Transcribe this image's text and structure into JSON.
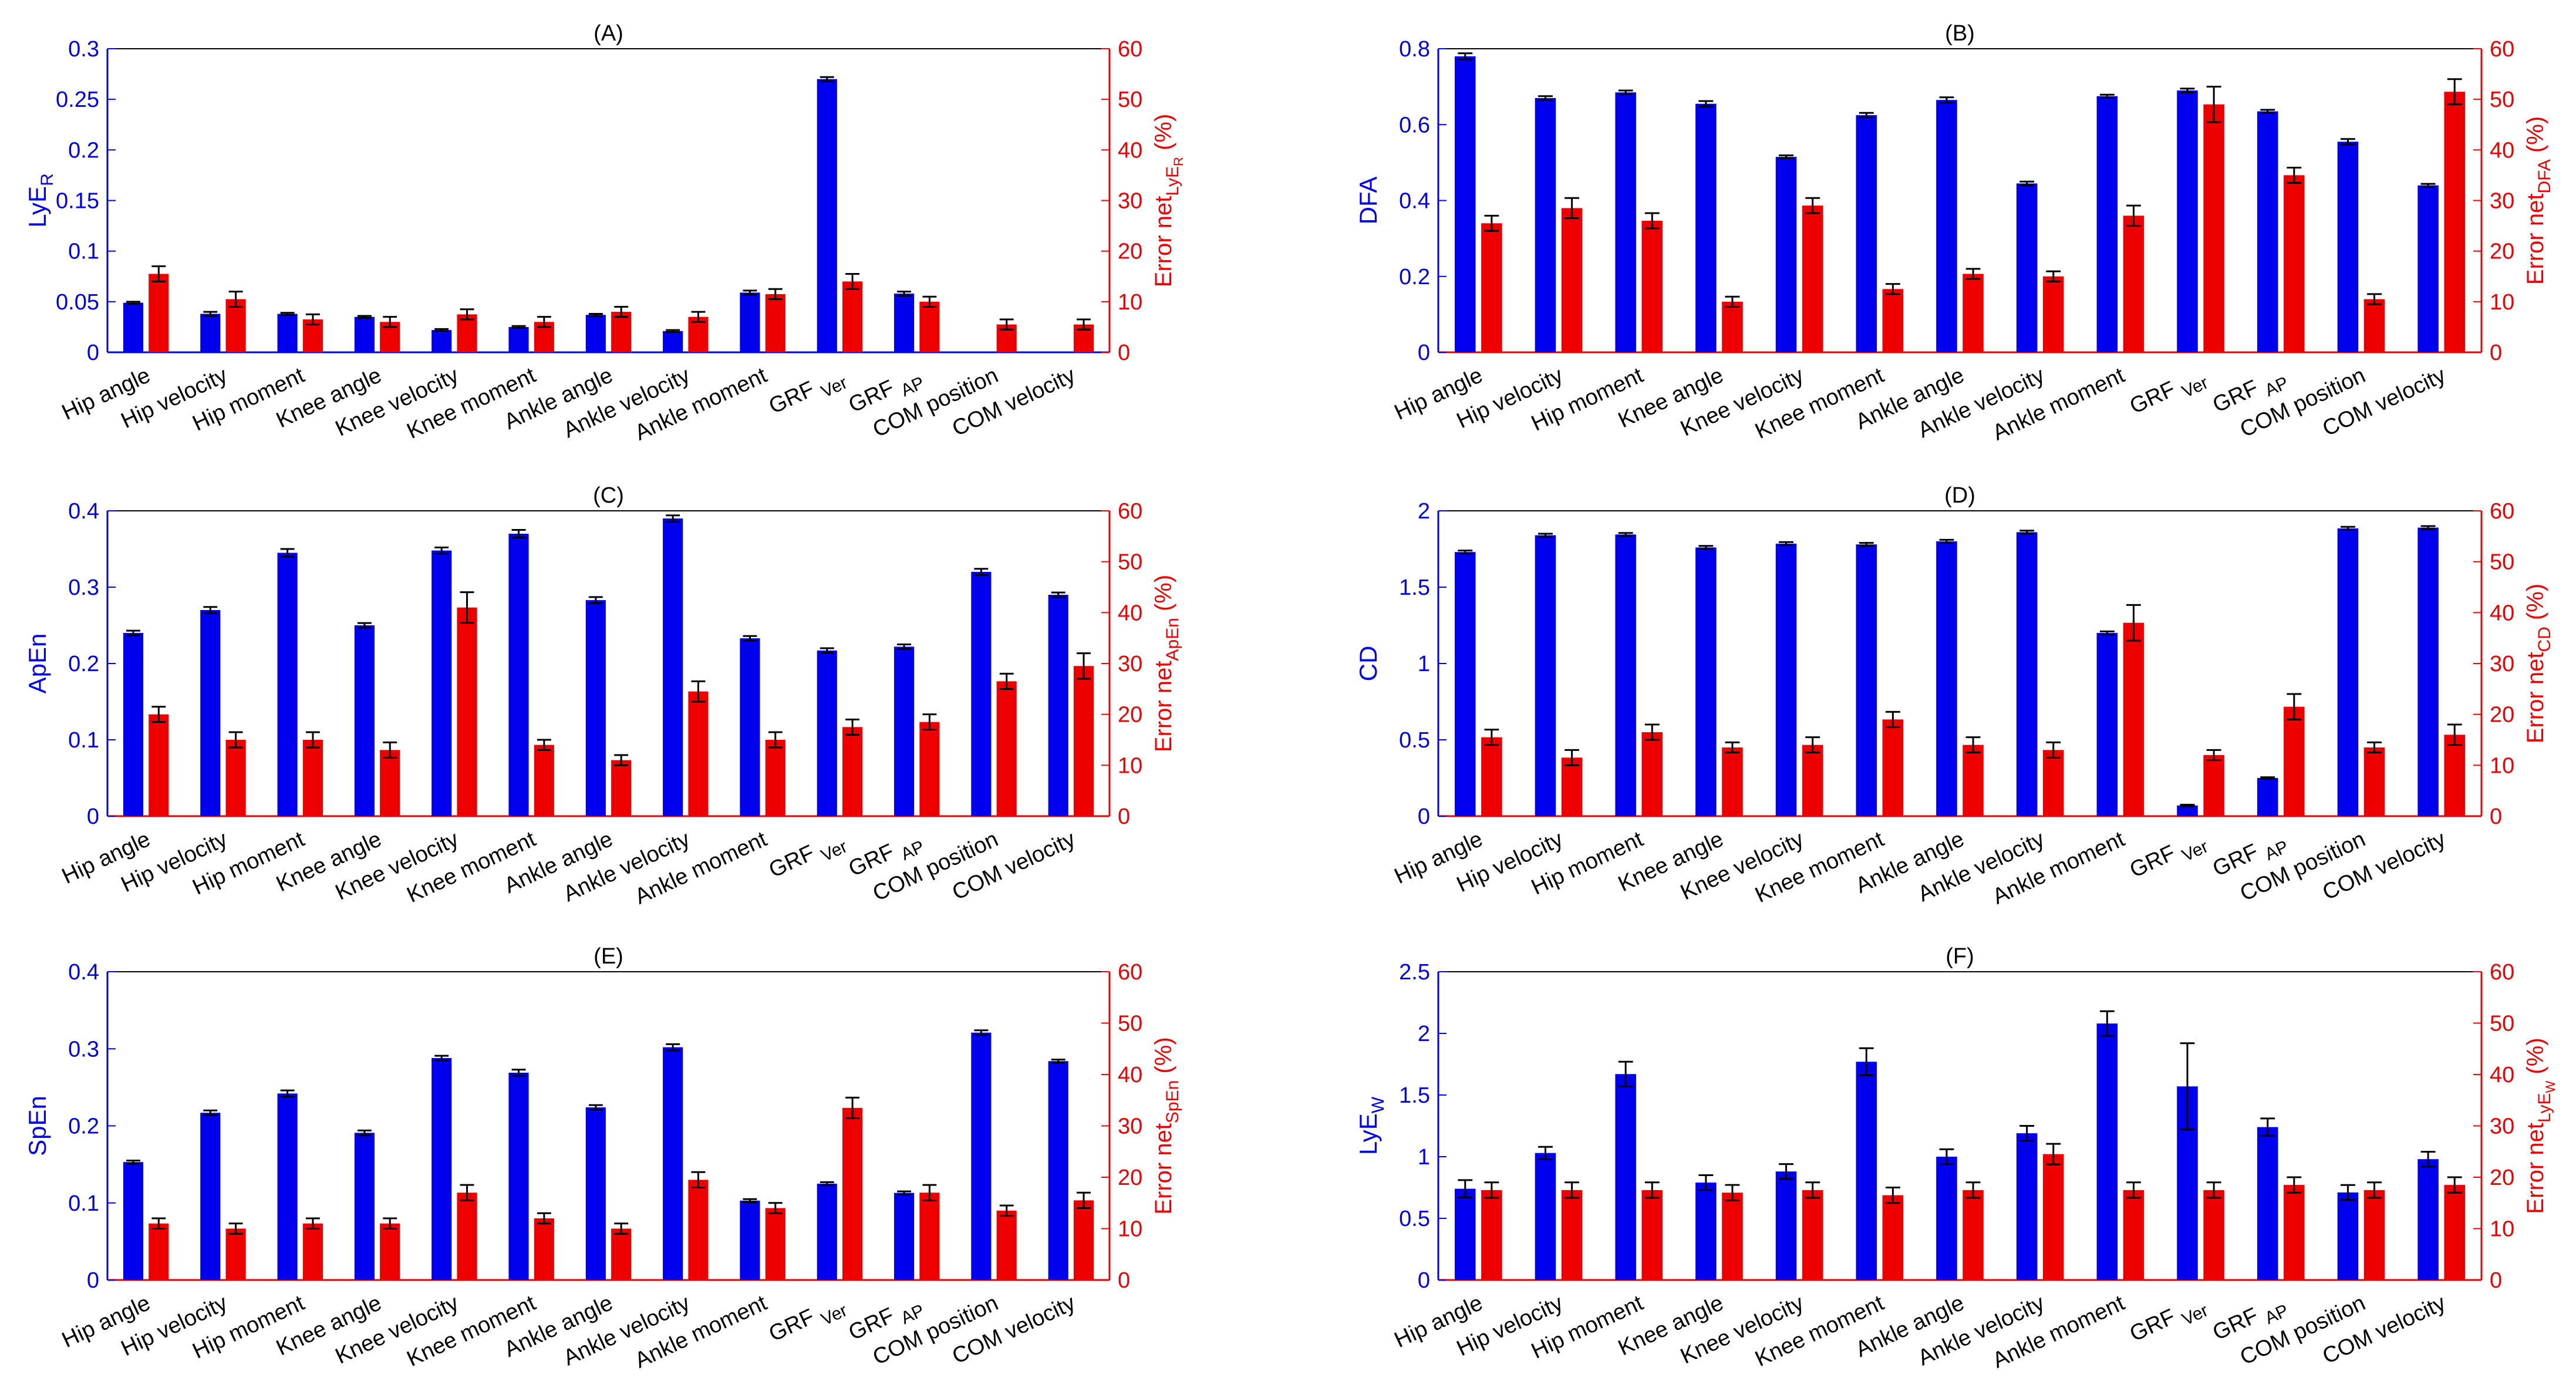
{
  "chart_data": [
    {
      "type": "bar",
      "title": "(A)",
      "ylabel": {
        "base": "LyE",
        "sub": "R"
      },
      "ylabel_right": {
        "base": "Error net",
        "sub": "LyE",
        "sub2": "R",
        "suffix": " (%)"
      },
      "ylim": [
        0,
        0.3
      ],
      "yticks": [
        0,
        0.05,
        0.1,
        0.15,
        0.2,
        0.25,
        0.3
      ],
      "ylim_right": [
        0,
        60
      ],
      "yticks_right": [
        0,
        10,
        20,
        30,
        40,
        50,
        60
      ],
      "categories": [
        "Hip angle",
        "Hip velocity",
        "Hip moment",
        "Knee angle",
        "Knee velocity",
        "Knee moment",
        "Ankle angle",
        "Ankle velocity",
        "Ankle moment",
        "GRF Ver",
        "GRF AP",
        "COM position",
        "COM velocity"
      ],
      "series": [
        {
          "name": "LyE_R",
          "axis": "left",
          "values": [
            0.049,
            0.038,
            0.038,
            0.035,
            0.022,
            0.025,
            0.037,
            0.021,
            0.059,
            0.27,
            0.058,
            0.0,
            0.0
          ],
          "errors": [
            0.001,
            0.002,
            0.001,
            0.001,
            0.001,
            0.001,
            0.001,
            0.001,
            0.002,
            0.002,
            0.002,
            0.0,
            0.0
          ]
        },
        {
          "name": "Error net LyE_R (%)",
          "axis": "right",
          "values": [
            15.5,
            10.5,
            6.5,
            6.0,
            7.5,
            6.0,
            8.0,
            7.0,
            11.5,
            14.0,
            10.0,
            5.5,
            5.5
          ],
          "errors": [
            1.5,
            1.5,
            1.0,
            1.0,
            1.0,
            1.0,
            1.0,
            1.0,
            1.0,
            1.5,
            1.0,
            1.0,
            1.0
          ]
        }
      ]
    },
    {
      "type": "bar",
      "title": "(B)",
      "ylabel": {
        "base": "DFA",
        "sub": ""
      },
      "ylabel_right": {
        "base": "Error net",
        "sub": "DFA",
        "sub2": "",
        "suffix": " (%)"
      },
      "ylim": [
        0,
        0.8
      ],
      "yticks": [
        0,
        0.2,
        0.4,
        0.6,
        0.8
      ],
      "ylim_right": [
        0,
        60
      ],
      "yticks_right": [
        0,
        10,
        20,
        30,
        40,
        50,
        60
      ],
      "categories": [
        "Hip angle",
        "Hip velocity",
        "Hip moment",
        "Knee angle",
        "Knee velocity",
        "Knee moment",
        "Ankle angle",
        "Ankle velocity",
        "Ankle moment",
        "GRF Ver",
        "GRF AP",
        "COM position",
        "COM velocity"
      ],
      "series": [
        {
          "name": "DFA",
          "axis": "left",
          "values": [
            0.78,
            0.67,
            0.685,
            0.655,
            0.515,
            0.625,
            0.665,
            0.445,
            0.675,
            0.69,
            0.635,
            0.555,
            0.44
          ],
          "errors": [
            0.008,
            0.005,
            0.005,
            0.007,
            0.004,
            0.006,
            0.007,
            0.005,
            0.004,
            0.005,
            0.004,
            0.007,
            0.004
          ]
        },
        {
          "name": "Error net DFA (%)",
          "axis": "right",
          "values": [
            25.5,
            28.5,
            26.0,
            10.0,
            29.0,
            12.5,
            15.5,
            15.0,
            27.0,
            49.0,
            35.0,
            10.5,
            51.5
          ],
          "errors": [
            1.5,
            2.0,
            1.5,
            1.0,
            1.5,
            1.0,
            1.0,
            1.0,
            2.0,
            3.5,
            1.5,
            1.0,
            2.5
          ]
        }
      ]
    },
    {
      "type": "bar",
      "title": "(C)",
      "ylabel": {
        "base": "ApEn",
        "sub": ""
      },
      "ylabel_right": {
        "base": "Error net",
        "sub": "ApEn",
        "sub2": "",
        "suffix": " (%)"
      },
      "ylim": [
        0,
        0.4
      ],
      "yticks": [
        0,
        0.1,
        0.2,
        0.3,
        0.4
      ],
      "ylim_right": [
        0,
        60
      ],
      "yticks_right": [
        0,
        10,
        20,
        30,
        40,
        50,
        60
      ],
      "categories": [
        "Hip angle",
        "Hip velocity",
        "Hip moment",
        "Knee angle",
        "Knee velocity",
        "Knee moment",
        "Ankle angle",
        "Ankle velocity",
        "Ankle moment",
        "GRF Ver",
        "GRF AP",
        "COM position",
        "COM velocity"
      ],
      "series": [
        {
          "name": "ApEn",
          "axis": "left",
          "values": [
            0.24,
            0.27,
            0.345,
            0.25,
            0.348,
            0.37,
            0.283,
            0.39,
            0.233,
            0.217,
            0.222,
            0.32,
            0.29
          ],
          "errors": [
            0.003,
            0.004,
            0.005,
            0.003,
            0.004,
            0.005,
            0.004,
            0.004,
            0.003,
            0.003,
            0.003,
            0.004,
            0.003
          ]
        },
        {
          "name": "Error net ApEn (%)",
          "axis": "right",
          "values": [
            20.0,
            15.0,
            15.0,
            13.0,
            41.0,
            14.0,
            11.0,
            24.5,
            15.0,
            17.5,
            18.5,
            26.5,
            29.5
          ],
          "errors": [
            1.5,
            1.5,
            1.5,
            1.5,
            3.0,
            1.0,
            1.0,
            2.0,
            1.5,
            1.5,
            1.5,
            1.5,
            2.5
          ]
        }
      ]
    },
    {
      "type": "bar",
      "title": "(D)",
      "ylabel": {
        "base": "CD",
        "sub": ""
      },
      "ylabel_right": {
        "base": "Error net",
        "sub": "CD",
        "sub2": "",
        "suffix": " (%)"
      },
      "ylim": [
        0,
        2
      ],
      "yticks": [
        0,
        0.5,
        1,
        1.5,
        2
      ],
      "ylim_right": [
        0,
        60
      ],
      "yticks_right": [
        0,
        10,
        20,
        30,
        40,
        50,
        60
      ],
      "categories": [
        "Hip angle",
        "Hip velocity",
        "Hip moment",
        "Knee angle",
        "Knee velocity",
        "Knee moment",
        "Ankle angle",
        "Ankle velocity",
        "Ankle moment",
        "GRF Ver",
        "GRF AP",
        "COM position",
        "COM velocity"
      ],
      "series": [
        {
          "name": "CD",
          "axis": "left",
          "values": [
            1.73,
            1.84,
            1.845,
            1.76,
            1.785,
            1.78,
            1.8,
            1.86,
            1.2,
            0.07,
            0.25,
            1.885,
            1.89
          ],
          "errors": [
            0.01,
            0.01,
            0.01,
            0.01,
            0.01,
            0.01,
            0.01,
            0.01,
            0.01,
            0.005,
            0.005,
            0.01,
            0.01
          ]
        },
        {
          "name": "Error net CD (%)",
          "axis": "right",
          "values": [
            15.5,
            11.5,
            16.5,
            13.5,
            14.0,
            19.0,
            14.0,
            13.0,
            38.0,
            12.0,
            21.5,
            13.5,
            16.0
          ],
          "errors": [
            1.5,
            1.5,
            1.5,
            1.0,
            1.5,
            1.5,
            1.5,
            1.5,
            3.5,
            1.0,
            2.5,
            1.0,
            2.0
          ]
        }
      ]
    },
    {
      "type": "bar",
      "title": "(E)",
      "ylabel": {
        "base": "SpEn",
        "sub": ""
      },
      "ylabel_right": {
        "base": "Error net",
        "sub": "SpEn",
        "sub2": "",
        "suffix": " (%)"
      },
      "ylim": [
        0,
        0.4
      ],
      "yticks": [
        0,
        0.1,
        0.2,
        0.3,
        0.4
      ],
      "ylim_right": [
        0,
        60
      ],
      "yticks_right": [
        0,
        10,
        20,
        30,
        40,
        50,
        60
      ],
      "categories": [
        "Hip angle",
        "Hip velocity",
        "Hip moment",
        "Knee angle",
        "Knee velocity",
        "Knee moment",
        "Ankle angle",
        "Ankle velocity",
        "Ankle moment",
        "GRF Ver",
        "GRF AP",
        "COM position",
        "COM velocity"
      ],
      "series": [
        {
          "name": "SpEn",
          "axis": "left",
          "values": [
            0.153,
            0.217,
            0.242,
            0.191,
            0.288,
            0.269,
            0.224,
            0.302,
            0.103,
            0.125,
            0.113,
            0.321,
            0.284
          ],
          "errors": [
            0.002,
            0.003,
            0.004,
            0.003,
            0.003,
            0.004,
            0.003,
            0.004,
            0.002,
            0.002,
            0.002,
            0.003,
            0.002
          ]
        },
        {
          "name": "Error net SpEn (%)",
          "axis": "right",
          "values": [
            11.0,
            10.0,
            11.0,
            11.0,
            17.0,
            12.0,
            10.0,
            19.5,
            14.0,
            33.5,
            17.0,
            13.5,
            15.5
          ],
          "errors": [
            1.0,
            1.0,
            1.0,
            1.0,
            1.5,
            1.0,
            1.0,
            1.5,
            1.0,
            2.0,
            1.5,
            1.0,
            1.5
          ]
        }
      ]
    },
    {
      "type": "bar",
      "title": "(F)",
      "ylabel": {
        "base": "LyE",
        "sub": "W"
      },
      "ylabel_right": {
        "base": "Error net",
        "sub": "LyE",
        "sub2": "W",
        "suffix": " (%)"
      },
      "ylim": [
        0,
        2.5
      ],
      "yticks": [
        0,
        0.5,
        1,
        1.5,
        2,
        2.5
      ],
      "ylim_right": [
        0,
        60
      ],
      "yticks_right": [
        0,
        10,
        20,
        30,
        40,
        50,
        60
      ],
      "categories": [
        "Hip angle",
        "Hip velocity",
        "Hip moment",
        "Knee angle",
        "Knee velocity",
        "Knee moment",
        "Ankle angle",
        "Ankle velocity",
        "Ankle moment",
        "GRF Ver",
        "GRF AP",
        "COM position",
        "COM velocity"
      ],
      "series": [
        {
          "name": "LyE_W",
          "axis": "left",
          "values": [
            0.74,
            1.03,
            1.67,
            0.79,
            0.88,
            1.77,
            1.0,
            1.19,
            2.08,
            1.57,
            1.24,
            0.71,
            0.98
          ],
          "errors": [
            0.07,
            0.05,
            0.1,
            0.06,
            0.06,
            0.11,
            0.06,
            0.06,
            0.1,
            0.35,
            0.07,
            0.06,
            0.06
          ]
        },
        {
          "name": "Error net LyE_W (%)",
          "axis": "right",
          "values": [
            17.5,
            17.5,
            17.5,
            17.0,
            17.5,
            16.5,
            17.5,
            24.5,
            17.5,
            17.5,
            18.5,
            17.5,
            18.5
          ],
          "errors": [
            1.5,
            1.5,
            1.5,
            1.5,
            1.5,
            1.5,
            1.5,
            2.0,
            1.5,
            1.5,
            1.5,
            1.5,
            1.5
          ]
        }
      ]
    }
  ],
  "colors": {
    "primary": "#0000ee",
    "secondary": "#ee0000",
    "axis": "#000000"
  }
}
